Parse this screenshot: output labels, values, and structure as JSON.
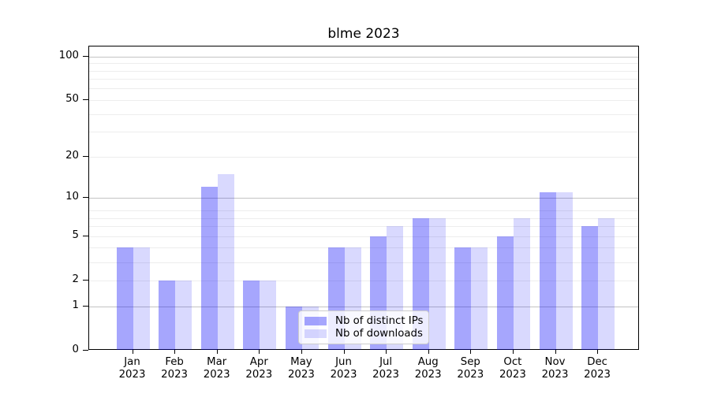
{
  "title": "blme 2023",
  "chart_data": {
    "type": "bar",
    "title": "blme 2023",
    "categories": [
      "Jan",
      "Feb",
      "Mar",
      "Apr",
      "May",
      "Jun",
      "Jul",
      "Aug",
      "Sep",
      "Oct",
      "Nov",
      "Dec"
    ],
    "category_year": "2023",
    "series": [
      {
        "name": "Nb of distinct IPs",
        "values": [
          4,
          2,
          12,
          2,
          1,
          4,
          5,
          7,
          4,
          5,
          11,
          6
        ]
      },
      {
        "name": "Nb of downloads",
        "values": [
          4,
          2,
          15,
          2,
          1,
          4,
          6,
          7,
          4,
          7,
          11,
          7
        ]
      }
    ],
    "yscale": "log10(1+v)",
    "ylim": [
      0,
      115
    ],
    "yticks": [
      100,
      50,
      20,
      10,
      5,
      2,
      1,
      0
    ],
    "ytick_labels": [
      "100",
      "50",
      "20",
      "10",
      "5",
      "2",
      "1",
      "0"
    ],
    "grid": true,
    "grid_major": [
      1,
      10,
      100
    ],
    "grid_minor": [
      2,
      3,
      4,
      5,
      6,
      7,
      8,
      20,
      30,
      40,
      50,
      60,
      70,
      80,
      90
    ],
    "legend_position": "lower center"
  },
  "colors": {
    "bar_ips": "rgba(0,0,250,0.35)",
    "bar_downloads": "rgba(0,0,250,0.15)",
    "grid_major": "#c3c3c3",
    "grid_minor": "#ededed",
    "spine": "#000000",
    "text": "#000000",
    "legend_bg": "rgba(255,255,255,0.8)",
    "legend_border": "#cccccc"
  }
}
